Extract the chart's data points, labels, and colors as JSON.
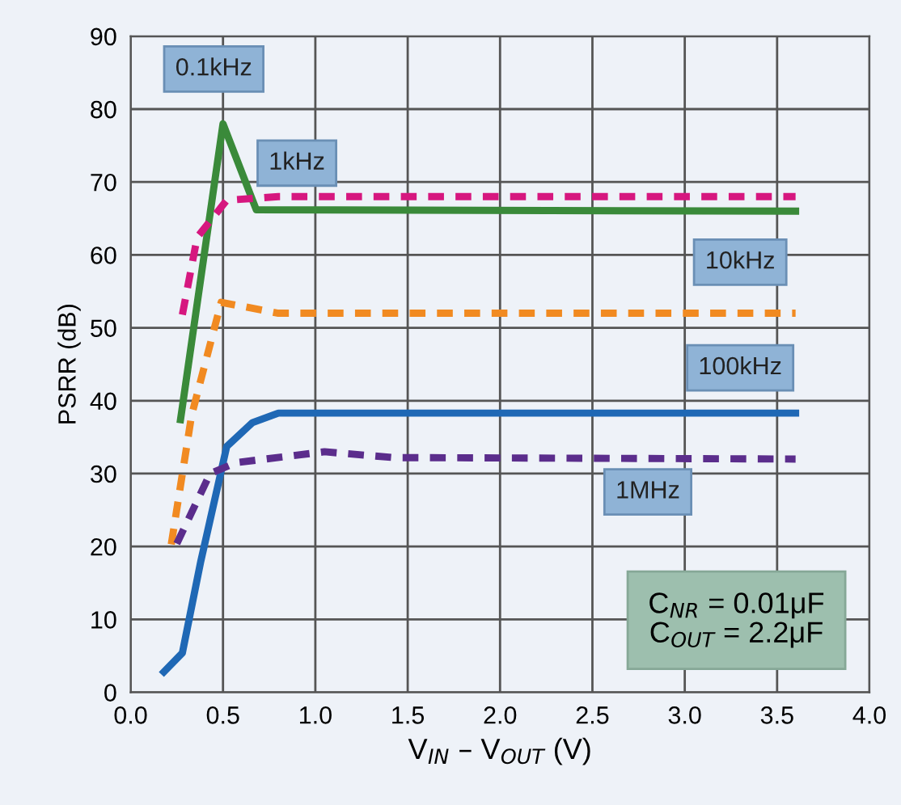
{
  "chart_data": {
    "type": "line",
    "xlabel": "V$_{IN}$ – V$_{OUT}$ (V)",
    "ylabel": "PSRR (dB)",
    "xlim": [
      0,
      4.0
    ],
    "xticks": [
      {
        "value": 0,
        "label": "0.0"
      },
      0.5,
      {
        "value": 1,
        "label": "1.0"
      },
      1.5,
      {
        "value": 2,
        "label": "2.0"
      },
      2.5,
      {
        "value": 3,
        "label": "3.0"
      },
      3.5,
      {
        "value": 4,
        "label": "4.0"
      }
    ],
    "ylim": [
      0,
      90
    ],
    "yticks": [
      0,
      10,
      20,
      30,
      40,
      50,
      60,
      70,
      80,
      90
    ],
    "grid": true,
    "legend": false,
    "series": [
      {
        "name": "0.1kHz",
        "color": "#3a8a3a",
        "line_style": "solid",
        "x": [
          0.27,
          0.5,
          0.68,
          3.6
        ],
        "values": [
          37.4,
          78,
          66.2,
          66
        ]
      },
      {
        "name": "1kHz",
        "color": "#d6177f",
        "line_style": "dashed",
        "x": [
          0.28,
          0.36,
          0.52,
          0.8,
          3.6
        ],
        "values": [
          51.8,
          62.4,
          67.5,
          68,
          68
        ]
      },
      {
        "name": "10kHz",
        "color": "#f18a21",
        "line_style": "dashed",
        "x": [
          0.22,
          0.33,
          0.49,
          0.8,
          3.6
        ],
        "values": [
          20.3,
          38,
          53.5,
          52,
          52
        ]
      },
      {
        "name": "100kHz",
        "color": "#1f68b5",
        "line_style": "solid",
        "x": [
          0.18,
          0.28,
          0.38,
          0.52,
          0.66,
          0.8,
          3.6
        ],
        "values": [
          2.8,
          5.4,
          18,
          33.7,
          37,
          38.3,
          38.3
        ]
      },
      {
        "name": "1MHz",
        "color": "#5b2d8c",
        "line_style": "dashed",
        "x": [
          0.25,
          0.43,
          0.57,
          1.05,
          1.42,
          3.6
        ],
        "values": [
          20.4,
          30,
          31.5,
          33,
          32.2,
          32
        ]
      }
    ],
    "annotations": [
      "C$_{NR}$ = 0.01μF\nC$_{OUT}$ = 2.2μF"
    ]
  }
}
